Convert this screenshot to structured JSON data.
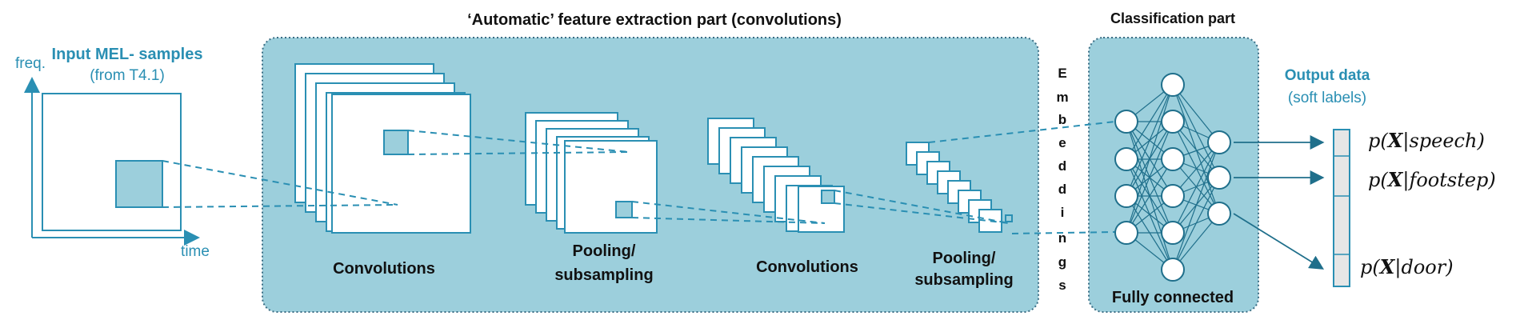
{
  "titles": {
    "feature_extraction": "‘Automatic’ feature extraction part (convolutions)",
    "classification": "Classification part"
  },
  "input": {
    "title": "Input MEL- samples",
    "subtitle": "(from T4.1)",
    "axis_y": "freq.",
    "axis_x": "time"
  },
  "stages": {
    "conv1": "Convolutions",
    "pool1_line1": "Pooling/",
    "pool1_line2": "subsampling",
    "conv2": "Convolutions",
    "pool2_line1": "Pooling/",
    "pool2_line2": "subsampling",
    "fully_connected": "Fully connected"
  },
  "embeddings_letters": [
    "E",
    "m",
    "b",
    "e",
    "d",
    "d",
    "i",
    "n",
    "g",
    "s"
  ],
  "output": {
    "title": "Output data",
    "subtitle": "(soft labels)",
    "labels": [
      {
        "prefix": "p(",
        "var": "X",
        "sep": "|",
        "name": "speech",
        "suffix": ")"
      },
      {
        "prefix": "p(",
        "var": "X",
        "sep": "|",
        "name": "footstep",
        "suffix": ")"
      },
      {
        "prefix": "p(",
        "var": "X",
        "sep": "|",
        "name": "door",
        "suffix": ")"
      }
    ]
  },
  "colors": {
    "panel_fill": "#9ccfdc",
    "panel_border": "#3a6e85",
    "accent_teal": "#2a8fb3",
    "connection": "#1f6f8b",
    "node_fill": "#ffffff"
  }
}
